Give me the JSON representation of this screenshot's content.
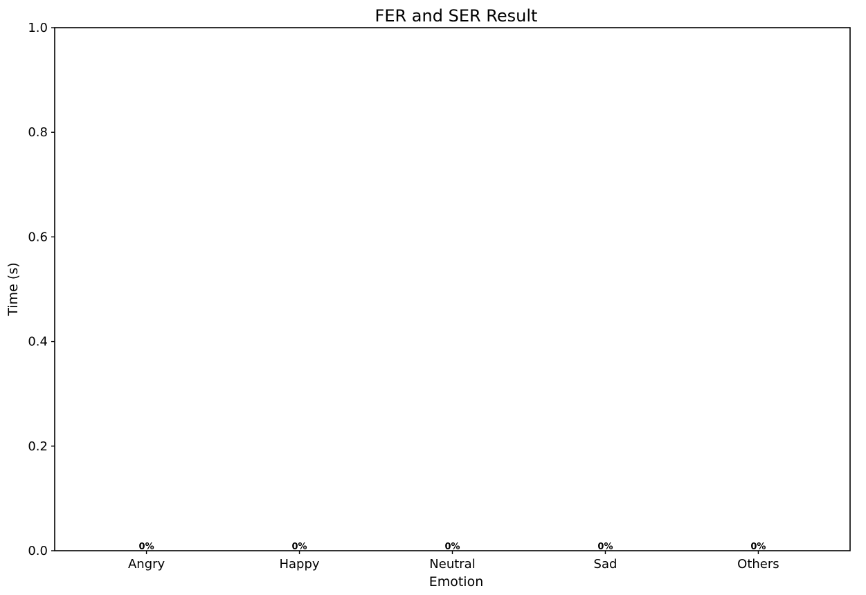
{
  "chart_data": {
    "type": "bar",
    "title": "FER and SER Result",
    "xlabel": "Emotion",
    "ylabel": "Time (s)",
    "categories": [
      "Angry",
      "Happy",
      "Neutral",
      "Sad",
      "Others"
    ],
    "values": [
      0,
      0,
      0,
      0,
      0
    ],
    "data_labels": [
      "0%",
      "0%",
      "0%",
      "0%",
      "0%"
    ],
    "ylim": [
      0,
      1
    ],
    "yticks": [
      "0.0",
      "0.2",
      "0.4",
      "0.6",
      "0.8",
      "1.0"
    ],
    "grid": false,
    "legend": "none",
    "bar_color": "#1f77b4"
  }
}
